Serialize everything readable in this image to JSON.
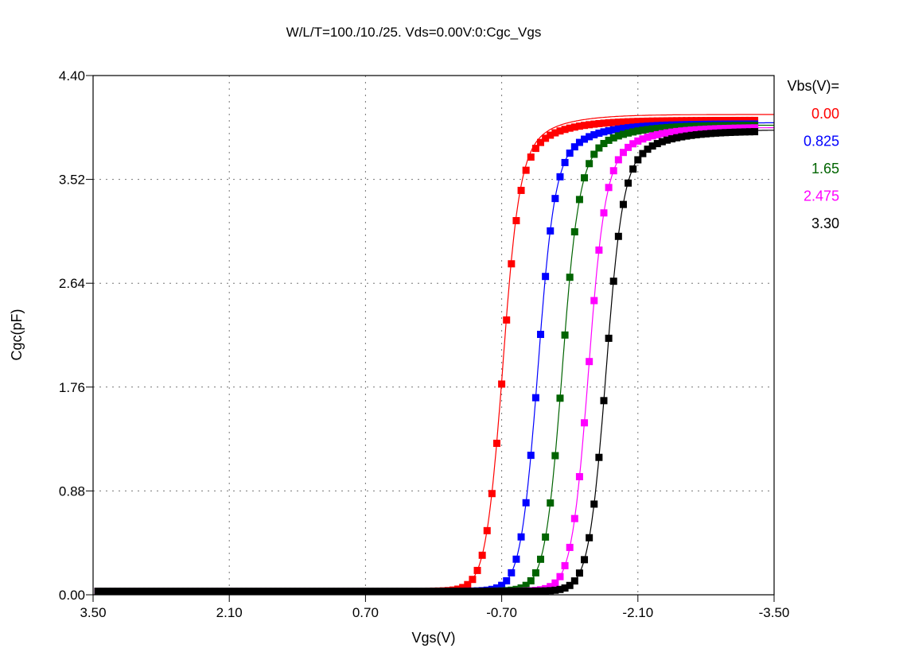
{
  "chart_data": {
    "type": "line",
    "title": "W/L/T=100./10./25.  Vds=0.00V:0:Cgc_Vgs",
    "xlabel": "Vgs(V)",
    "ylabel": "Cgc(pF)",
    "xlim": [
      3.5,
      -3.5
    ],
    "ylim": [
      0,
      4.4
    ],
    "xticks": [
      "3.50",
      "2.10",
      "0.70",
      "-0.70",
      "-2.10",
      "-3.50"
    ],
    "xtick_values": [
      3.5,
      2.1,
      0.7,
      -0.7,
      -2.1,
      -3.5
    ],
    "yticks": [
      "0.00",
      "0.88",
      "1.76",
      "2.64",
      "3.52",
      "4.40"
    ],
    "ytick_values": [
      0,
      0.88,
      1.76,
      2.64,
      3.52,
      4.4
    ],
    "grid": true,
    "legend_title": "Vbs(V)=",
    "legend_placement": "right",
    "marker_vgs": {
      "start": 3.45,
      "end": -3.3,
      "step": -0.05
    },
    "fit_vgs": {
      "start": 2.0,
      "end": -3.5,
      "step": -0.01
    },
    "series": [
      {
        "name": "0.00",
        "color": "#ff0000",
        "vmid": -0.7,
        "slope": 0.085,
        "cmin": 0.03,
        "cmax": 4.02,
        "fit_cmax": 4.07
      },
      {
        "name": "0.825",
        "color": "#0000ff",
        "vmid": -1.06,
        "slope": 0.085,
        "cmin": 0.03,
        "cmax": 3.99,
        "fit_cmax": 4.0
      },
      {
        "name": "1.65",
        "color": "#006400",
        "vmid": -1.31,
        "slope": 0.085,
        "cmin": 0.03,
        "cmax": 3.98,
        "fit_cmax": 3.98
      },
      {
        "name": "2.475",
        "color": "#ff00ff",
        "vmid": -1.58,
        "slope": 0.085,
        "cmin": 0.03,
        "cmax": 3.96,
        "fit_cmax": 3.96
      },
      {
        "name": "3.30",
        "color": "#000000",
        "vmid": -1.76,
        "slope": 0.085,
        "cmin": 0.03,
        "cmax": 3.93,
        "fit_cmax": 3.94
      }
    ]
  }
}
